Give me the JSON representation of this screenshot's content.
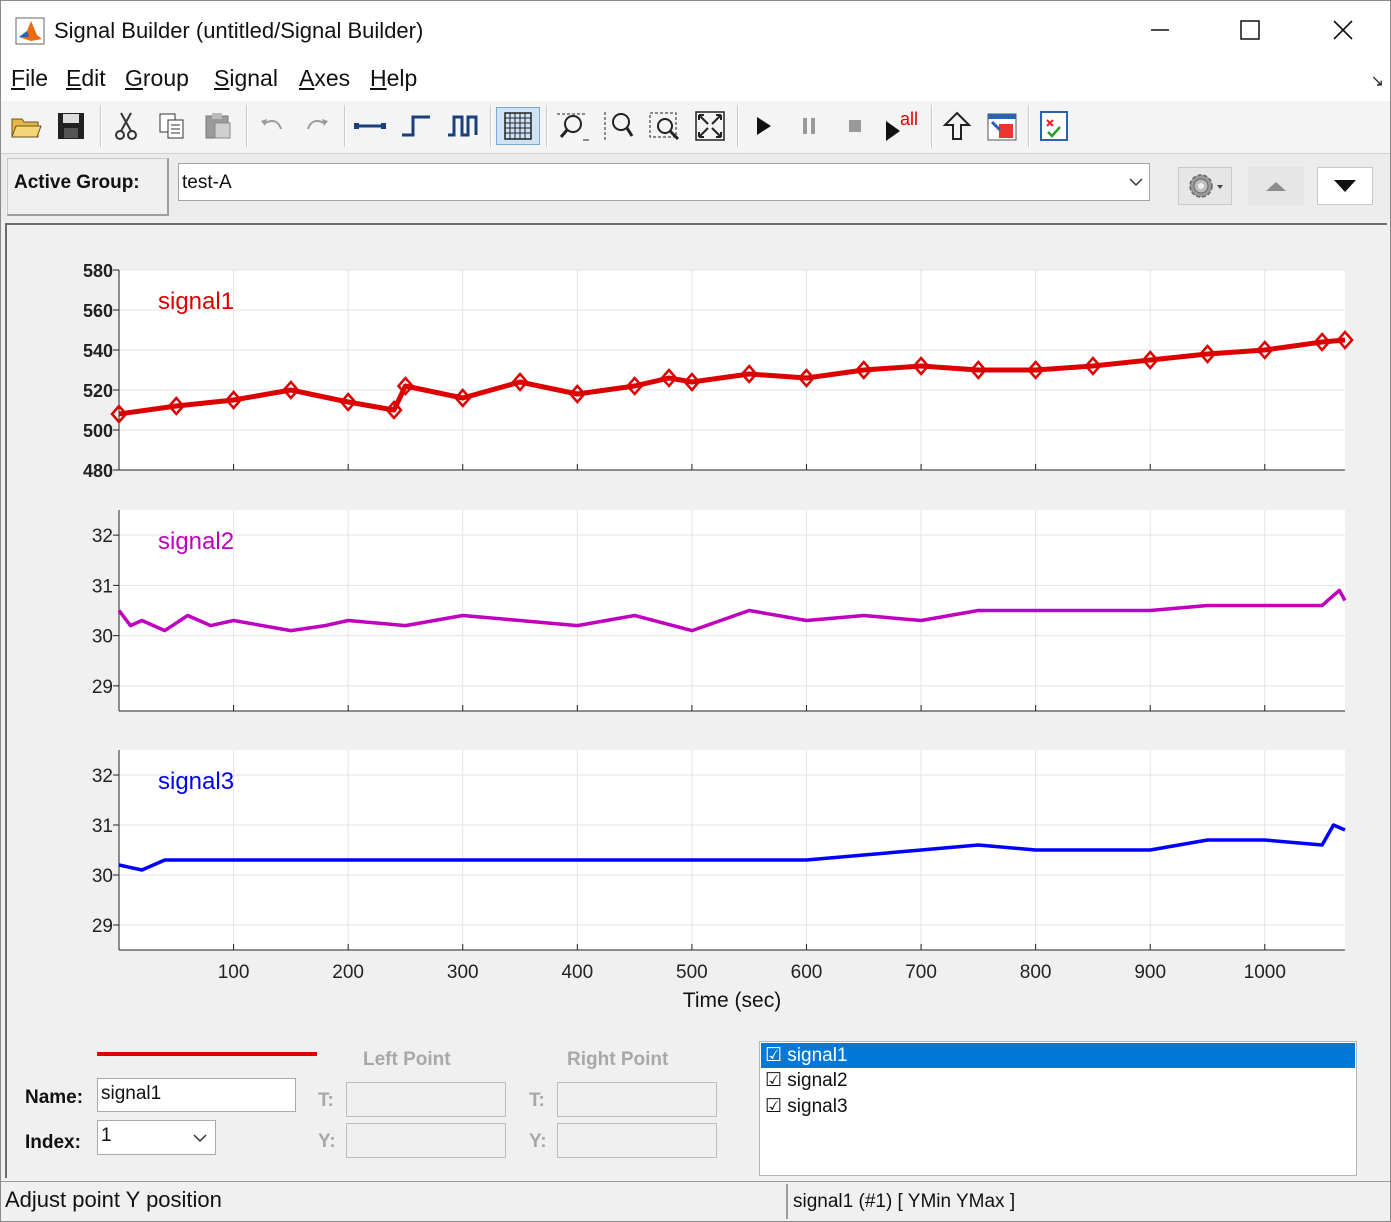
{
  "window": {
    "title": "Signal Builder (untitled/Signal Builder)",
    "minimize_label": "—",
    "maximize_label": "☐",
    "close_label": "✕"
  },
  "menu": [
    "File",
    "Edit",
    "Group",
    "Signal",
    "Axes",
    "Help"
  ],
  "toolbar": {
    "buttons": [
      "open-icon",
      "save-icon",
      "cut-icon",
      "copy-icon",
      "paste-icon",
      "undo-icon",
      "redo-icon",
      "constant-icon",
      "step-icon",
      "pulse-icon",
      "grid-icon",
      "zoom-x-icon",
      "zoom-y-icon",
      "zoom-xy-icon",
      "fit-to-view-icon",
      "play-icon",
      "pause-icon",
      "stop-icon",
      "run-all-icon",
      "move-up-icon",
      "show-verification-icon",
      "requirements-icon"
    ],
    "run_all_label": "all"
  },
  "group": {
    "label": "Active Group:",
    "value": "test-A"
  },
  "colors": {
    "signal1": "#dd0000",
    "signal2": "#bf00bf",
    "signal3": "#0000ff",
    "selection": "#0078d7"
  },
  "chart_data": [
    {
      "type": "line",
      "name": "signal1",
      "label": "signal1",
      "ylim": [
        480,
        580
      ],
      "yticks": [
        "580",
        "560",
        "540",
        "520",
        "500",
        "480"
      ],
      "xlim": [
        0,
        1070
      ],
      "x": [
        0,
        50,
        100,
        150,
        200,
        240,
        250,
        300,
        350,
        400,
        450,
        480,
        500,
        550,
        600,
        650,
        700,
        750,
        800,
        850,
        900,
        950,
        1000,
        1050,
        1070
      ],
      "values": [
        508,
        512,
        515,
        520,
        514,
        510,
        522,
        516,
        524,
        518,
        522,
        526,
        524,
        528,
        526,
        530,
        532,
        530,
        530,
        532,
        535,
        538,
        540,
        544,
        545
      ]
    },
    {
      "type": "line",
      "name": "signal2",
      "label": "signal2",
      "ylim": [
        28.5,
        32.5
      ],
      "yticks": [
        "32",
        "31",
        "30",
        "29"
      ],
      "xlim": [
        0,
        1070
      ],
      "x": [
        0,
        10,
        20,
        40,
        60,
        80,
        100,
        150,
        180,
        200,
        250,
        300,
        350,
        400,
        450,
        500,
        550,
        600,
        650,
        700,
        750,
        800,
        850,
        900,
        950,
        1000,
        1050,
        1060,
        1065,
        1070
      ],
      "values": [
        30.5,
        30.2,
        30.3,
        30.1,
        30.4,
        30.2,
        30.3,
        30.1,
        30.2,
        30.3,
        30.2,
        30.4,
        30.3,
        30.2,
        30.4,
        30.1,
        30.5,
        30.3,
        30.4,
        30.3,
        30.5,
        30.5,
        30.5,
        30.5,
        30.6,
        30.6,
        30.6,
        30.8,
        30.9,
        30.7
      ]
    },
    {
      "type": "line",
      "name": "signal3",
      "label": "signal3",
      "ylim": [
        28.5,
        32.5
      ],
      "yticks": [
        "32",
        "31",
        "30",
        "29"
      ],
      "xlim": [
        0,
        1070
      ],
      "xticks": [
        "100",
        "200",
        "300",
        "400",
        "500",
        "600",
        "700",
        "800",
        "900",
        "1000"
      ],
      "xlabel": "Time (sec)",
      "x": [
        0,
        20,
        40,
        100,
        200,
        300,
        400,
        500,
        550,
        600,
        650,
        700,
        750,
        800,
        850,
        900,
        950,
        1000,
        1050,
        1060,
        1070
      ],
      "values": [
        30.2,
        30.1,
        30.3,
        30.3,
        30.3,
        30.3,
        30.3,
        30.3,
        30.3,
        30.3,
        30.4,
        30.5,
        30.6,
        30.5,
        30.5,
        30.5,
        30.7,
        30.7,
        30.6,
        31.0,
        30.9
      ]
    }
  ],
  "editor": {
    "name_label": "Name:",
    "name_value": "signal1",
    "index_label": "Index:",
    "index_value": "1",
    "left_point_label": "Left Point",
    "right_point_label": "Right Point",
    "t_label": "T:",
    "y_label": "Y:"
  },
  "signal_list": [
    {
      "label": "☑ signal1",
      "selected": true
    },
    {
      "label": "☑ signal2",
      "selected": false
    },
    {
      "label": "☑ signal3",
      "selected": false
    }
  ],
  "status": {
    "left": "Adjust point Y position",
    "right": "signal1 (#1)  [ YMin YMax ]"
  }
}
